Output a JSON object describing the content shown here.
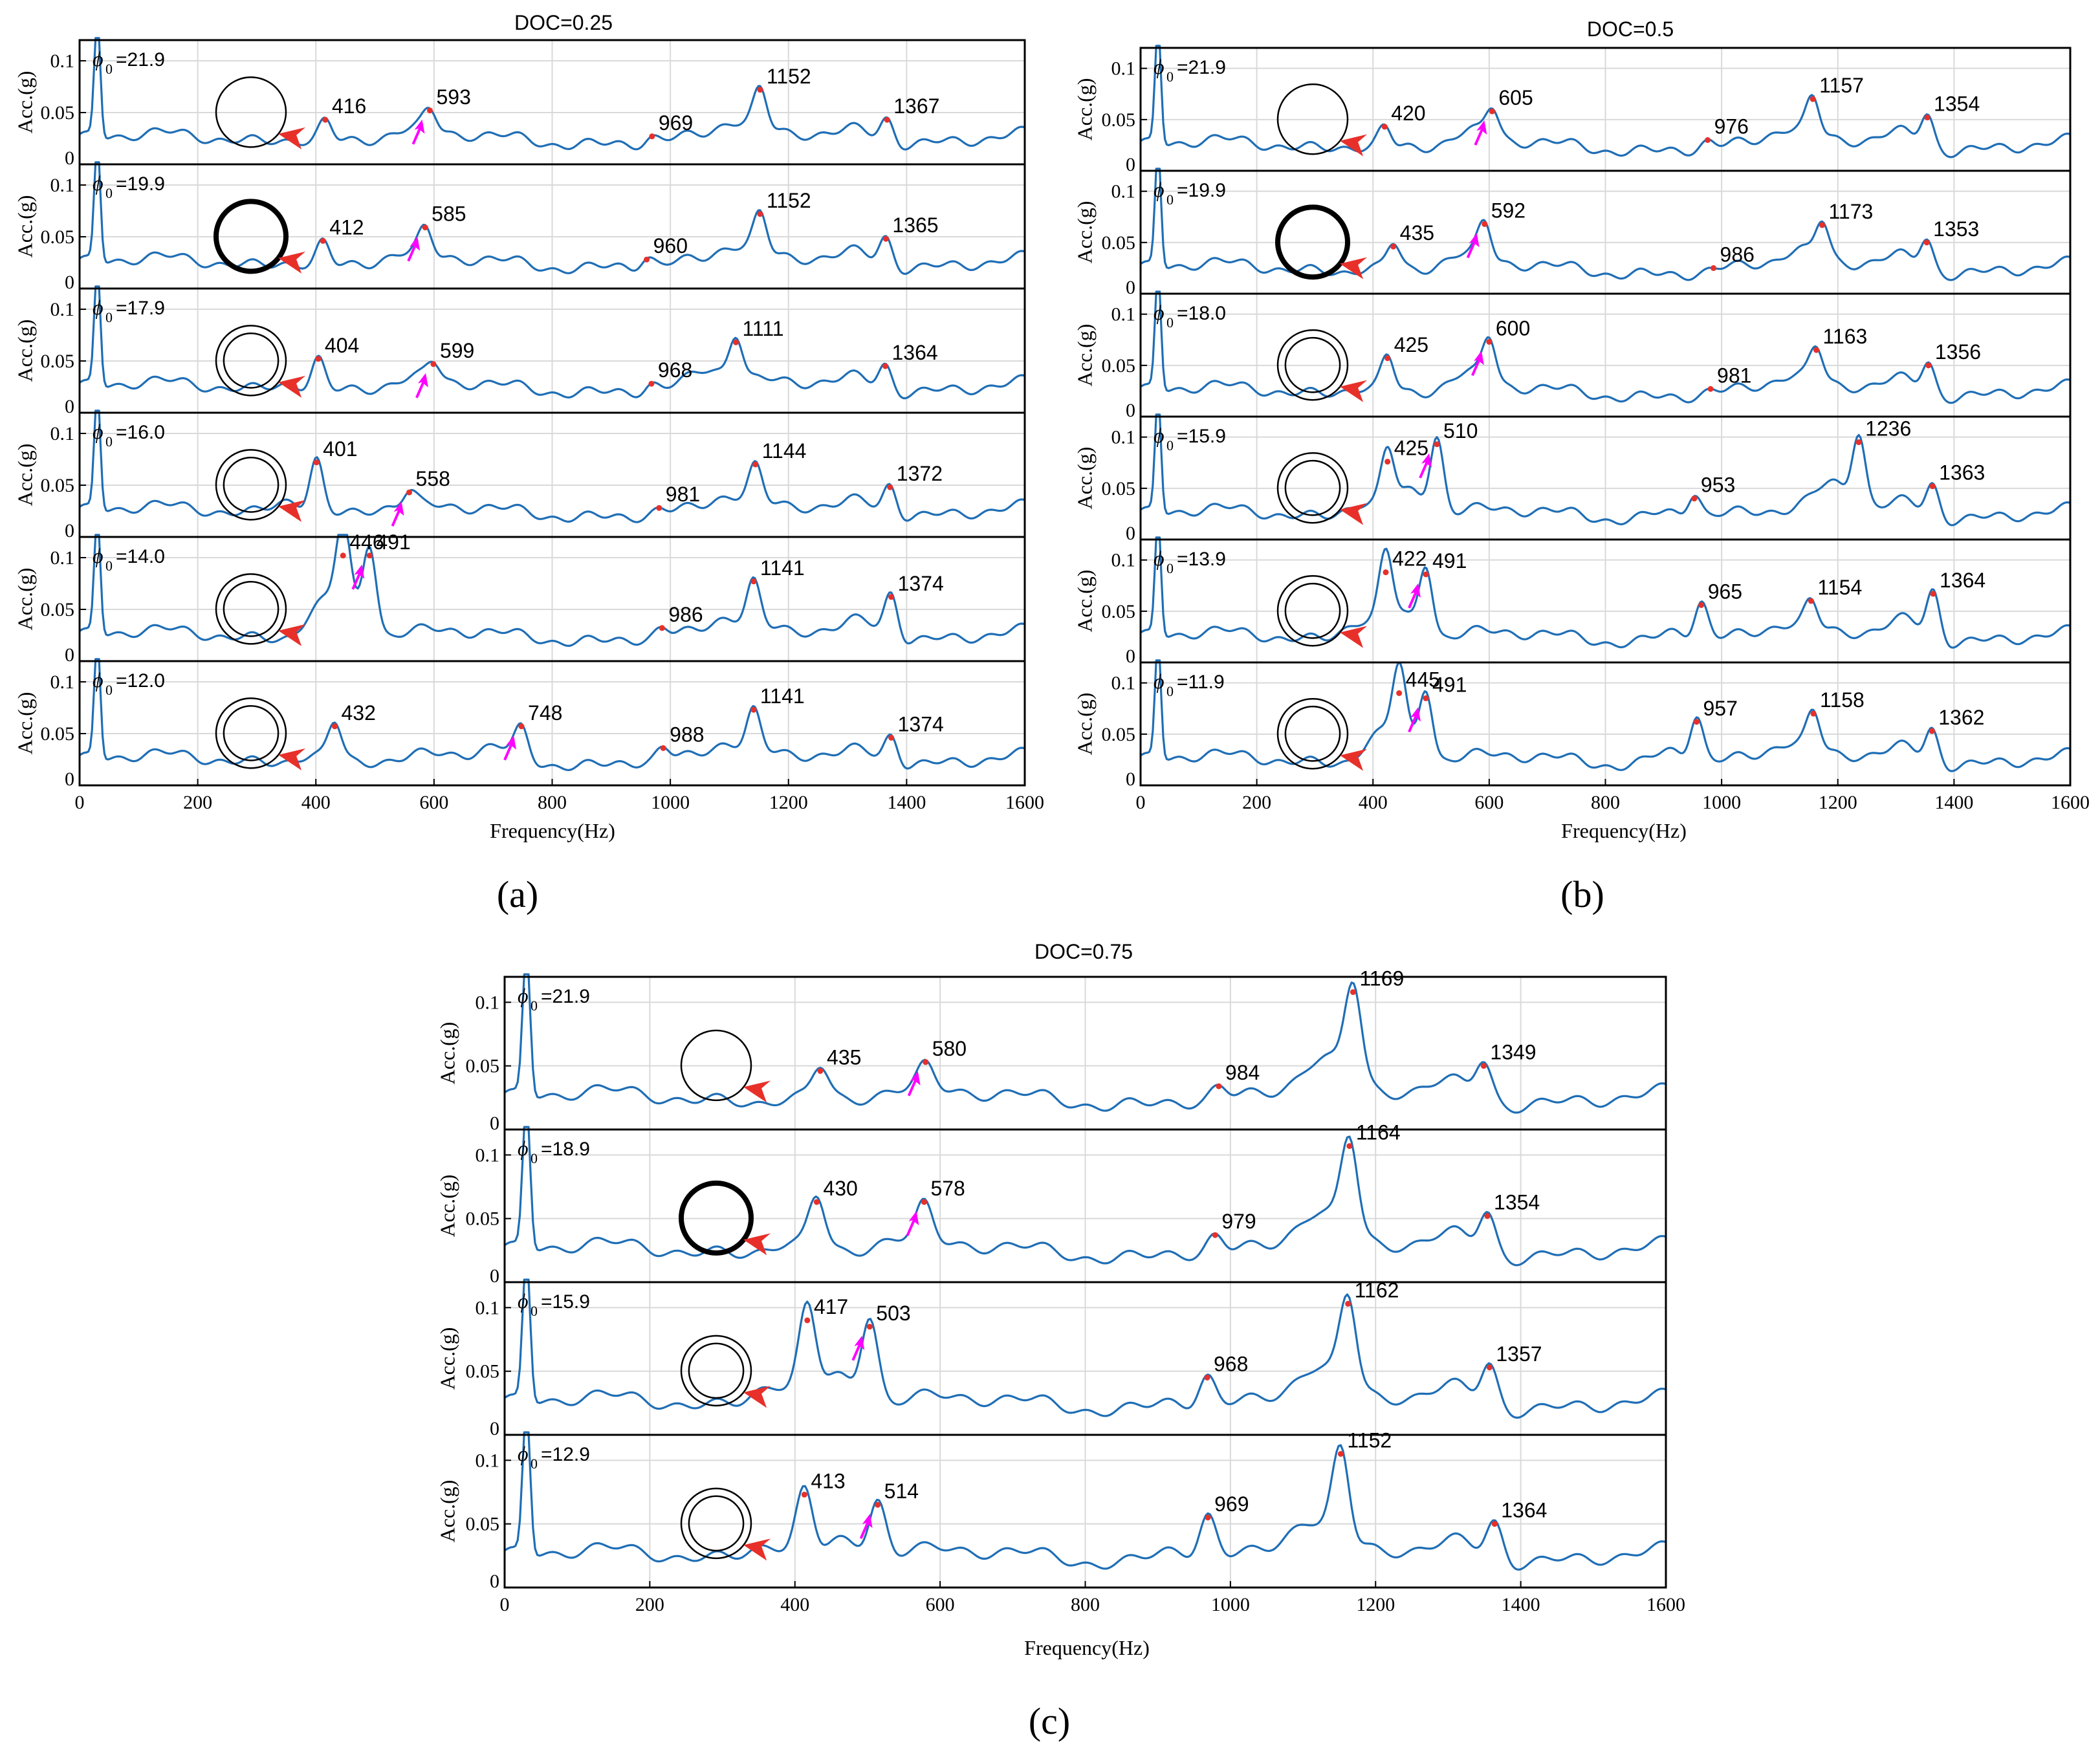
{
  "chart_data": [
    {
      "type": "line",
      "title": "DOC=0.25",
      "caption": "(a)",
      "xlabel": "Frequency(Hz)",
      "ylabel": "Acc.(g)",
      "xlim": [
        0,
        1600
      ],
      "ylim": [
        0,
        0.12
      ],
      "xticks": [
        "0",
        "200",
        "400",
        "600",
        "800",
        "1000",
        "1200",
        "1400",
        "1600"
      ],
      "yticks": [
        "0",
        "0.05",
        "0.1"
      ],
      "grid": true,
      "line_color": "#1f6eb5",
      "peak_color": "#e8302a",
      "arrow_colors": {
        "circle_marker": "#e8302a",
        "mode_marker": "#ff00ff"
      },
      "panels": [
        {
          "phi_symbol": "ϕ",
          "phi_sub": "0",
          "phi_value": "=21.9",
          "ring_style": "thin-single",
          "peaks": [
            {
              "x": 416,
              "y": 0.043,
              "label": "416"
            },
            {
              "x": 593,
              "y": 0.052,
              "label": "593"
            },
            {
              "x": 969,
              "y": 0.027,
              "label": "969"
            },
            {
              "x": 1152,
              "y": 0.072,
              "label": "1152"
            },
            {
              "x": 1367,
              "y": 0.043,
              "label": "1367"
            }
          ]
        },
        {
          "phi_symbol": "ϕ",
          "phi_sub": "0",
          "phi_value": "=19.9",
          "ring_style": "thick-single",
          "peaks": [
            {
              "x": 412,
              "y": 0.046,
              "label": "412"
            },
            {
              "x": 585,
              "y": 0.059,
              "label": "585"
            },
            {
              "x": 960,
              "y": 0.028,
              "label": "960"
            },
            {
              "x": 1152,
              "y": 0.072,
              "label": "1152"
            },
            {
              "x": 1365,
              "y": 0.048,
              "label": "1365"
            }
          ]
        },
        {
          "phi_symbol": "ϕ",
          "phi_sub": "0",
          "phi_value": "=17.9",
          "ring_style": "double",
          "peaks": [
            {
              "x": 404,
              "y": 0.052,
              "label": "404"
            },
            {
              "x": 599,
              "y": 0.047,
              "label": "599"
            },
            {
              "x": 968,
              "y": 0.028,
              "label": "968"
            },
            {
              "x": 1111,
              "y": 0.068,
              "label": "1111"
            },
            {
              "x": 1364,
              "y": 0.045,
              "label": "1364"
            }
          ]
        },
        {
          "phi_symbol": "ϕ",
          "phi_sub": "0",
          "phi_value": "=16.0",
          "ring_style": "double",
          "peaks": [
            {
              "x": 401,
              "y": 0.072,
              "label": "401"
            },
            {
              "x": 558,
              "y": 0.043,
              "label": "558"
            },
            {
              "x": 981,
              "y": 0.028,
              "label": "981"
            },
            {
              "x": 1144,
              "y": 0.07,
              "label": "1144"
            },
            {
              "x": 1372,
              "y": 0.048,
              "label": "1372"
            }
          ]
        },
        {
          "phi_symbol": "ϕ",
          "phi_sub": "0",
          "phi_value": "=14.0",
          "ring_style": "double",
          "peaks": [
            {
              "x": 446,
              "y": 0.102,
              "label": "446"
            },
            {
              "x": 491,
              "y": 0.102,
              "label": "491"
            },
            {
              "x": 986,
              "y": 0.032,
              "label": "986"
            },
            {
              "x": 1141,
              "y": 0.077,
              "label": "1141"
            },
            {
              "x": 1374,
              "y": 0.062,
              "label": "1374"
            }
          ]
        },
        {
          "phi_symbol": "ϕ",
          "phi_sub": "0",
          "phi_value": "=12.0",
          "ring_style": "double",
          "peaks": [
            {
              "x": 432,
              "y": 0.057,
              "label": "432"
            },
            {
              "x": 748,
              "y": 0.057,
              "label": "748"
            },
            {
              "x": 988,
              "y": 0.036,
              "label": "988"
            },
            {
              "x": 1141,
              "y": 0.073,
              "label": "1141"
            },
            {
              "x": 1374,
              "y": 0.046,
              "label": "1374"
            }
          ]
        }
      ]
    },
    {
      "type": "line",
      "title": "DOC=0.5",
      "caption": "(b)",
      "xlabel": "Frequency(Hz)",
      "ylabel": "Acc.(g)",
      "xlim": [
        0,
        1600
      ],
      "ylim": [
        0,
        0.12
      ],
      "xticks": [
        "0",
        "200",
        "400",
        "600",
        "800",
        "1000",
        "1200",
        "1400",
        "1600"
      ],
      "yticks": [
        "0",
        "0.05",
        "0.1"
      ],
      "grid": true,
      "line_color": "#1f6eb5",
      "peak_color": "#e8302a",
      "arrow_colors": {
        "circle_marker": "#e8302a",
        "mode_marker": "#ff00ff"
      },
      "panels": [
        {
          "phi_symbol": "ϕ",
          "phi_sub": "0",
          "phi_value": "=21.9",
          "ring_style": "thin-single",
          "peaks": [
            {
              "x": 420,
              "y": 0.043,
              "label": "420"
            },
            {
              "x": 605,
              "y": 0.058,
              "label": "605"
            },
            {
              "x": 976,
              "y": 0.03,
              "label": "976"
            },
            {
              "x": 1157,
              "y": 0.07,
              "label": "1157"
            },
            {
              "x": 1354,
              "y": 0.052,
              "label": "1354"
            }
          ]
        },
        {
          "phi_symbol": "ϕ",
          "phi_sub": "0",
          "phi_value": "=19.9",
          "ring_style": "thick-single",
          "peaks": [
            {
              "x": 435,
              "y": 0.046,
              "label": "435"
            },
            {
              "x": 592,
              "y": 0.068,
              "label": "592"
            },
            {
              "x": 986,
              "y": 0.025,
              "label": "986"
            },
            {
              "x": 1173,
              "y": 0.067,
              "label": "1173"
            },
            {
              "x": 1353,
              "y": 0.05,
              "label": "1353"
            }
          ]
        },
        {
          "phi_symbol": "ϕ",
          "phi_sub": "0",
          "phi_value": "=18.0",
          "ring_style": "double",
          "peaks": [
            {
              "x": 425,
              "y": 0.057,
              "label": "425"
            },
            {
              "x": 600,
              "y": 0.073,
              "label": "600"
            },
            {
              "x": 981,
              "y": 0.027,
              "label": "981"
            },
            {
              "x": 1163,
              "y": 0.065,
              "label": "1163"
            },
            {
              "x": 1356,
              "y": 0.05,
              "label": "1356"
            }
          ]
        },
        {
          "phi_symbol": "ϕ",
          "phi_sub": "0",
          "phi_value": "=15.9",
          "ring_style": "double",
          "peaks": [
            {
              "x": 425,
              "y": 0.076,
              "label": "425"
            },
            {
              "x": 510,
              "y": 0.093,
              "label": "510"
            },
            {
              "x": 953,
              "y": 0.04,
              "label": "953"
            },
            {
              "x": 1236,
              "y": 0.095,
              "label": "1236"
            },
            {
              "x": 1363,
              "y": 0.052,
              "label": "1363"
            }
          ]
        },
        {
          "phi_symbol": "ϕ",
          "phi_sub": "0",
          "phi_value": "=13.9",
          "ring_style": "double",
          "peaks": [
            {
              "x": 422,
              "y": 0.088,
              "label": "422"
            },
            {
              "x": 491,
              "y": 0.086,
              "label": "491"
            },
            {
              "x": 965,
              "y": 0.056,
              "label": "965"
            },
            {
              "x": 1154,
              "y": 0.06,
              "label": "1154"
            },
            {
              "x": 1364,
              "y": 0.067,
              "label": "1364"
            }
          ]
        },
        {
          "phi_symbol": "ϕ",
          "phi_sub": "0",
          "phi_value": "=11.9",
          "ring_style": "double",
          "peaks": [
            {
              "x": 445,
              "y": 0.09,
              "label": "445"
            },
            {
              "x": 491,
              "y": 0.085,
              "label": "491"
            },
            {
              "x": 957,
              "y": 0.062,
              "label": "957"
            },
            {
              "x": 1158,
              "y": 0.07,
              "label": "1158"
            },
            {
              "x": 1362,
              "y": 0.053,
              "label": "1362"
            }
          ]
        }
      ]
    },
    {
      "type": "line",
      "title": "DOC=0.75",
      "caption": "(c)",
      "xlabel": "Frequency(Hz)",
      "ylabel": "Acc.(g)",
      "xlim": [
        0,
        1600
      ],
      "ylim": [
        0,
        0.12
      ],
      "xticks": [
        "0",
        "200",
        "400",
        "600",
        "800",
        "1000",
        "1200",
        "1400",
        "1600"
      ],
      "yticks": [
        "0",
        "0.05",
        "0.1"
      ],
      "grid": true,
      "line_color": "#1f6eb5",
      "peak_color": "#e8302a",
      "arrow_colors": {
        "circle_marker": "#e8302a",
        "mode_marker": "#ff00ff"
      },
      "panels": [
        {
          "phi_symbol": "ϕ",
          "phi_sub": "0",
          "phi_value": "=21.9",
          "ring_style": "thin-single",
          "peaks": [
            {
              "x": 435,
              "y": 0.046,
              "label": "435"
            },
            {
              "x": 580,
              "y": 0.053,
              "label": "580"
            },
            {
              "x": 984,
              "y": 0.034,
              "label": "984"
            },
            {
              "x": 1169,
              "y": 0.108,
              "label": "1169"
            },
            {
              "x": 1349,
              "y": 0.05,
              "label": "1349"
            }
          ]
        },
        {
          "phi_symbol": "ϕ",
          "phi_sub": "0",
          "phi_value": "=18.9",
          "ring_style": "thick-single",
          "peaks": [
            {
              "x": 430,
              "y": 0.063,
              "label": "430"
            },
            {
              "x": 578,
              "y": 0.063,
              "label": "578"
            },
            {
              "x": 979,
              "y": 0.037,
              "label": "979"
            },
            {
              "x": 1164,
              "y": 0.107,
              "label": "1164"
            },
            {
              "x": 1354,
              "y": 0.052,
              "label": "1354"
            }
          ]
        },
        {
          "phi_symbol": "ϕ",
          "phi_sub": "0",
          "phi_value": "=15.9",
          "ring_style": "double",
          "peaks": [
            {
              "x": 417,
              "y": 0.09,
              "label": "417"
            },
            {
              "x": 503,
              "y": 0.085,
              "label": "503"
            },
            {
              "x": 968,
              "y": 0.045,
              "label": "968"
            },
            {
              "x": 1162,
              "y": 0.103,
              "label": "1162"
            },
            {
              "x": 1357,
              "y": 0.053,
              "label": "1357"
            }
          ]
        },
        {
          "phi_symbol": "ϕ",
          "phi_sub": "0",
          "phi_value": "=12.9",
          "ring_style": "double",
          "peaks": [
            {
              "x": 413,
              "y": 0.073,
              "label": "413"
            },
            {
              "x": 514,
              "y": 0.065,
              "label": "514"
            },
            {
              "x": 969,
              "y": 0.055,
              "label": "969"
            },
            {
              "x": 1152,
              "y": 0.105,
              "label": "1152"
            },
            {
              "x": 1364,
              "y": 0.05,
              "label": "1364"
            }
          ]
        }
      ]
    }
  ]
}
